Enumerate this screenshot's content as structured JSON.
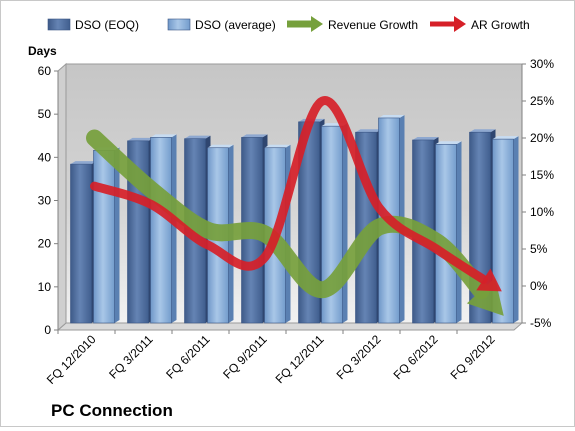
{
  "chart_data": {
    "type": "bar",
    "title": "PC Connection",
    "ylabel": "Days",
    "categories": [
      "FQ 12/2010",
      "FQ 3/2011",
      "FQ 6/2011",
      "FQ 9/2011",
      "FQ 12/2011",
      "FQ 3/2012",
      "FQ 6/2012",
      "FQ 9/2012"
    ],
    "ylim": [
      0,
      60
    ],
    "y_ticks": [
      "0",
      "10",
      "20",
      "30",
      "40",
      "50",
      "60"
    ],
    "y2lim": [
      -5,
      30
    ],
    "y2_ticks": [
      "-5%",
      "0%",
      "5%",
      "10%",
      "15%",
      "20%",
      "25%",
      "30%"
    ],
    "legend_position": "top",
    "grid": false,
    "series": [
      {
        "name": "DSO (EOQ)",
        "type": "bar",
        "axis": "left",
        "color": "#4f6d9e",
        "values": [
          36.8,
          42.2,
          42.7,
          43.0,
          46.6,
          44.2,
          42.4,
          44.2
        ]
      },
      {
        "name": "DSO (average)",
        "type": "bar",
        "axis": "left",
        "color": "#86acd6",
        "values": [
          40.0,
          43.0,
          40.6,
          40.6,
          45.6,
          47.5,
          41.4,
          42.6
        ]
      },
      {
        "name": "Revenue Growth",
        "type": "line",
        "axis": "right",
        "unit": "%",
        "color": "#76a03c",
        "values": [
          20.0,
          13.0,
          7.5,
          7.0,
          -0.5,
          8.0,
          6.0,
          -2.5
        ]
      },
      {
        "name": "AR Growth",
        "type": "line",
        "axis": "right",
        "unit": "%",
        "color": "#d62028",
        "values": [
          13.5,
          11.0,
          5.5,
          4.0,
          25.0,
          10.5,
          5.0,
          0.0
        ]
      }
    ]
  }
}
